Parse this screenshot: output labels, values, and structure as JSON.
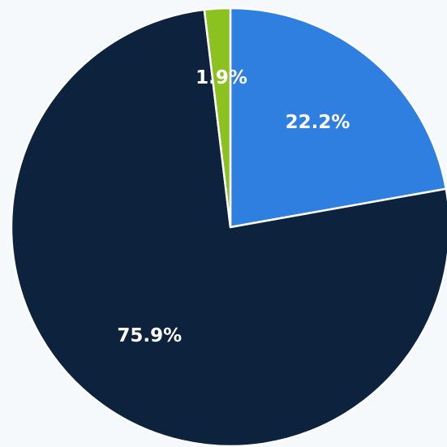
{
  "chart_data": {
    "type": "pie",
    "start_position": "top (12 o'clock), clockwise",
    "slices": [
      {
        "label": "22.2%",
        "value": 22.2,
        "color": "#2f7fe0"
      },
      {
        "label": "75.9%",
        "value": 75.9,
        "color": "#0d223d"
      },
      {
        "label": "1.9%",
        "value": 1.9,
        "color": "#8cc21f"
      }
    ],
    "separator_color": "#ffffff",
    "background": "#f5f9fc"
  }
}
